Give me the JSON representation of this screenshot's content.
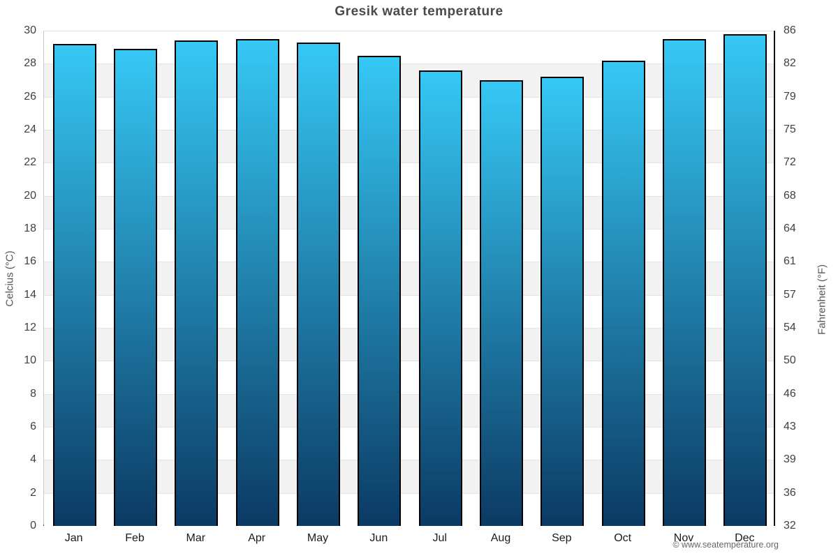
{
  "title": "Gresik water temperature",
  "attribution": "© www.seatemperature.org",
  "chart_data": {
    "type": "bar",
    "title": "Gresik water temperature",
    "categories": [
      "Jan",
      "Feb",
      "Mar",
      "Apr",
      "May",
      "Jun",
      "Jul",
      "Aug",
      "Sep",
      "Oct",
      "Nov",
      "Dec"
    ],
    "values": [
      29.2,
      28.9,
      29.4,
      29.5,
      29.3,
      28.5,
      27.6,
      27.0,
      27.2,
      28.2,
      29.5,
      29.8
    ],
    "series_name": "Water temperature",
    "ylabel_left": "Celcius (°C)",
    "ylabel_right": "Fahrenheit (°F)",
    "ylim_c": [
      0,
      30
    ],
    "yticks_c": [
      0,
      2,
      4,
      6,
      8,
      10,
      12,
      14,
      16,
      18,
      20,
      22,
      24,
      26,
      28,
      30
    ],
    "yticks_f_labels": [
      "32",
      "36",
      "39",
      "43",
      "46",
      "50",
      "54",
      "57",
      "61",
      "64",
      "68",
      "72",
      "75",
      "79",
      "82",
      "86"
    ],
    "legend": "none",
    "grid": "horizontal gridlines every 2°C with alternating white / light-gray bands",
    "colors": {
      "bar_gradient_top": "#36c8f5",
      "bar_gradient_bottom": "#0b3a63",
      "bar_border": "#000000",
      "band_gray": "#f2f2f2",
      "band_white": "#ffffff",
      "gridline": "#e4e4e4",
      "axis_black": "#111111",
      "axis_gray": "#c8c8c8",
      "title_text": "#4a4a4a",
      "tick_text": "#404040"
    }
  }
}
